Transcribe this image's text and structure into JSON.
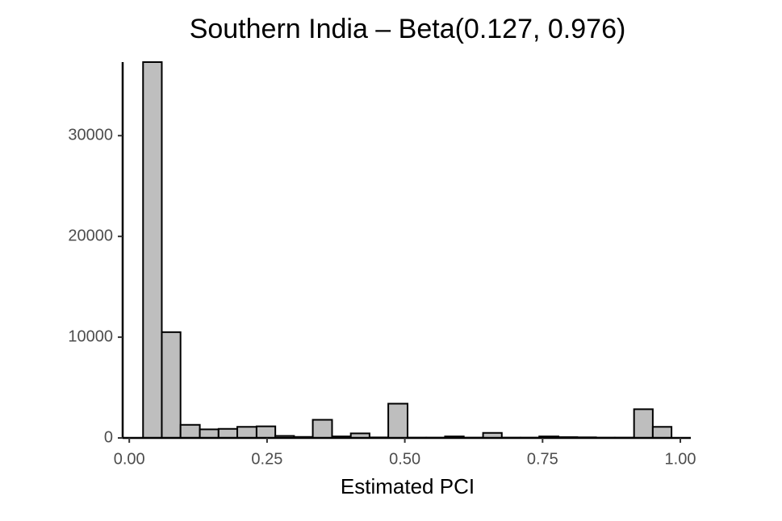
{
  "chart_data": {
    "type": "histogram",
    "title": "Southern India – Beta(0.127, 0.976)",
    "x_label": "Estimated PCI",
    "bins": [
      0.025,
      0.059,
      0.093,
      0.128,
      0.162,
      0.196,
      0.231,
      0.265,
      0.299,
      0.333,
      0.368,
      0.402,
      0.436,
      0.47,
      0.505,
      0.539,
      0.573,
      0.607,
      0.642,
      0.676,
      0.71,
      0.744,
      0.779,
      0.813,
      0.847,
      0.881,
      0.916,
      0.95,
      0.984
    ],
    "values": [
      37300,
      10500,
      1300,
      850,
      900,
      1100,
      1150,
      200,
      100,
      1800,
      150,
      450,
      50,
      3400,
      30,
      30,
      150,
      30,
      500,
      30,
      30,
      150,
      80,
      60,
      30,
      30,
      2850,
      1100
    ],
    "color": "#bebebe",
    "edge_color": "#000000",
    "xlim": [
      -0.012,
      1.019
    ],
    "xticks": [
      {
        "value": 0,
        "label": "0.00"
      },
      {
        "value": 0.25,
        "label": "0.25"
      },
      {
        "value": 0.5,
        "label": "0.50"
      },
      {
        "value": 0.75,
        "label": "0.75"
      },
      {
        "value": 1,
        "label": "1.00"
      }
    ],
    "ylim": [
      0,
      37300
    ],
    "yticks": [
      0,
      10000,
      20000,
      30000
    ]
  }
}
